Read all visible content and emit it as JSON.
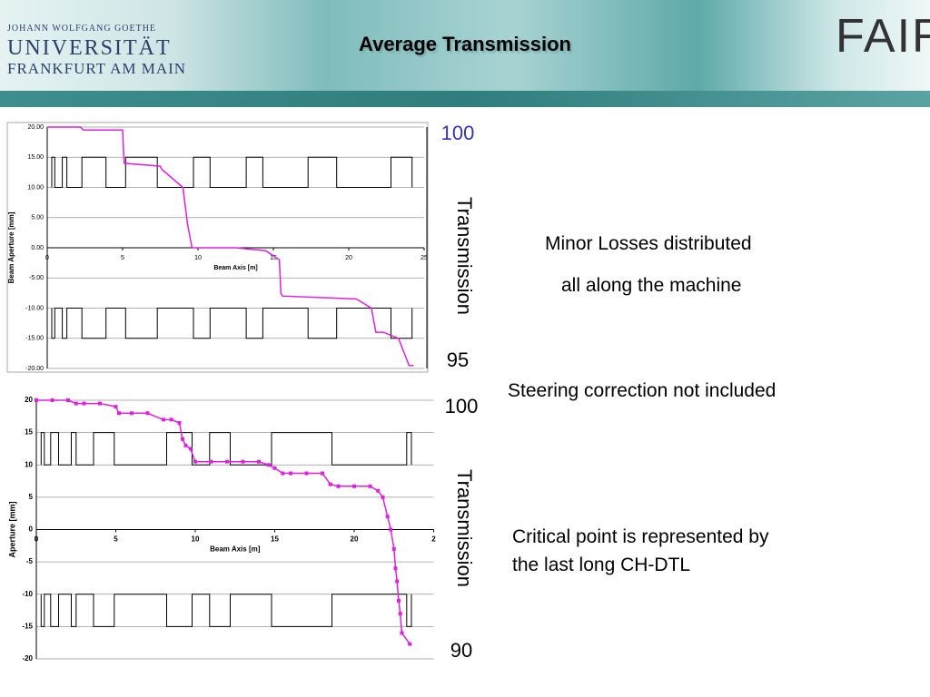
{
  "header": {
    "title": "Average Transmission",
    "university": [
      "JOHANN WOLFGANG GOETHE",
      "UNIVERSITÄT",
      "FRANKFURT AM MAIN"
    ],
    "logo": "FAIR"
  },
  "notes": [
    "Minor Losses distributed",
    "all along the machine",
    "Steering correction not included",
    "Critical point is represented by",
    "the last long CH-DTL"
  ],
  "chart_data": [
    {
      "type": "line",
      "xlabel": "Beam Axis [m]",
      "ylabel": "Beam Aperture [mm]",
      "y2label": "Transmission",
      "xlim": [
        0,
        25
      ],
      "xticks": [
        0,
        5,
        10,
        15,
        20,
        25
      ],
      "ylim": [
        -20,
        20
      ],
      "yticks": [
        {
          "value": 20,
          "label": "20.00"
        },
        {
          "value": 15,
          "label": "15.00"
        },
        {
          "value": 10,
          "label": "10.00"
        },
        {
          "value": 5,
          "label": "5.00"
        },
        {
          "value": 0,
          "label": "0.00"
        },
        {
          "value": -5,
          "label": "-5.00"
        },
        {
          "value": -10,
          "label": "-10.00"
        },
        {
          "value": -15,
          "label": "-15.00"
        },
        {
          "value": -20,
          "label": "-20.00"
        }
      ],
      "y2lim": [
        95,
        100
      ],
      "y2ticks": [
        95,
        100
      ],
      "grid": true,
      "series": [
        {
          "color": "#000000",
          "x": [
            0.3,
            0.3,
            0.5,
            0.5,
            1.0,
            1.0,
            1.3,
            1.3,
            2.3,
            2.3,
            3.9,
            3.9,
            5.2,
            5.2,
            7.3,
            7.3,
            9.7,
            9.7,
            10.8,
            10.8,
            13.2,
            13.2,
            14.3,
            14.3,
            17.3,
            17.3,
            19.2,
            19.2,
            22.8,
            22.8,
            24.2,
            24.2
          ],
          "values": [
            10,
            15,
            15,
            10,
            10,
            15,
            15,
            10,
            10,
            15,
            15,
            10,
            10,
            15,
            15,
            10,
            10,
            15,
            15,
            10,
            10,
            15,
            15,
            10,
            10,
            15,
            15,
            10,
            10,
            15,
            15,
            10
          ]
        },
        {
          "color": "#000000",
          "x": [
            0.3,
            0.3,
            0.5,
            0.5,
            1.0,
            1.0,
            1.3,
            1.3,
            2.3,
            2.3,
            3.9,
            3.9,
            5.2,
            5.2,
            7.3,
            7.3,
            9.7,
            9.7,
            10.8,
            10.8,
            13.2,
            13.2,
            14.3,
            14.3,
            17.3,
            17.3,
            19.2,
            19.2,
            22.8,
            22.8,
            24.2,
            24.2
          ],
          "values": [
            -10,
            -15,
            -15,
            -10,
            -10,
            -15,
            -15,
            -10,
            -10,
            -15,
            -15,
            -10,
            -10,
            -15,
            -15,
            -10,
            -10,
            -15,
            -15,
            -10,
            -10,
            -15,
            -15,
            -10,
            -10,
            -15,
            -15,
            -10,
            -10,
            -15,
            -15,
            -10
          ]
        },
        {
          "color": "#e020e0",
          "axis": "y2",
          "x": [
            0,
            2.2,
            2.4,
            5.0,
            5.1,
            7.5,
            7.6,
            9.0,
            9.3,
            9.6,
            9.8,
            12.5,
            14.5,
            15.4,
            15.5,
            15.6,
            20.5,
            21.5,
            21.8,
            22.3,
            23.3,
            24.0,
            24.3
          ],
          "values": [
            100,
            100,
            99.94,
            99.94,
            99.25,
            99.19,
            99.125,
            98.75,
            98.0,
            97.5,
            97.5,
            97.5,
            97.44,
            97.25,
            96.56,
            96.5,
            96.44,
            96.25,
            95.75,
            95.75,
            95.625,
            95.06,
            95.06
          ]
        }
      ]
    },
    {
      "type": "line",
      "xlabel": "Beam Axis [m]",
      "ylabel": "Aperture [mm]",
      "y2label": "Transmission",
      "xlim": [
        0,
        25
      ],
      "xticks": [
        0,
        5,
        10,
        15,
        20,
        {
          "value": 25,
          "label": "2"
        }
      ],
      "ylim": [
        -20,
        20
      ],
      "yticks": [
        20,
        15,
        10,
        5,
        0,
        -5,
        -10,
        -15,
        -20
      ],
      "y2lim": [
        90,
        100
      ],
      "y2ticks": [
        90,
        100
      ],
      "grid": true,
      "series": [
        {
          "color": "#000000",
          "x": [
            0.3,
            0.3,
            0.5,
            0.5,
            0.9,
            0.9,
            1.4,
            1.4,
            2.2,
            2.2,
            2.5,
            2.5,
            3.6,
            3.6,
            4.9,
            4.9,
            8.2,
            8.2,
            9.8,
            9.8,
            10.9,
            10.9,
            12.2,
            12.2,
            14.8,
            14.8,
            18.6,
            18.6,
            23.3,
            23.3,
            23.6,
            23.6
          ],
          "values": [
            10,
            15,
            15,
            10,
            10,
            15,
            15,
            10,
            10,
            15,
            15,
            10,
            10,
            15,
            15,
            10,
            10,
            15,
            15,
            10,
            10,
            15,
            15,
            10,
            10,
            15,
            15,
            10,
            10,
            15,
            15,
            10
          ]
        },
        {
          "color": "#000000",
          "x": [
            0.3,
            0.3,
            0.5,
            0.5,
            0.9,
            0.9,
            1.4,
            1.4,
            2.2,
            2.2,
            2.5,
            2.5,
            3.6,
            3.6,
            4.9,
            4.9,
            8.2,
            8.2,
            9.8,
            9.8,
            10.9,
            10.9,
            12.2,
            12.2,
            14.8,
            14.8,
            18.6,
            18.6,
            23.3,
            23.3,
            23.6,
            23.6
          ],
          "values": [
            -10,
            -15,
            -15,
            -10,
            -10,
            -15,
            -15,
            -10,
            -10,
            -15,
            -15,
            -10,
            -10,
            -15,
            -15,
            -10,
            -10,
            -15,
            -15,
            -10,
            -10,
            -15,
            -15,
            -10,
            -10,
            -15,
            -15,
            -10,
            -10,
            -15,
            -15,
            -10
          ]
        },
        {
          "color": "#e020e0",
          "axis": "y2",
          "marker": "square",
          "x": [
            0,
            1,
            2,
            2.5,
            3,
            4,
            5,
            5.2,
            6,
            7,
            8,
            8.5,
            9,
            9.2,
            9.4,
            9.7,
            10,
            11,
            12,
            13,
            14,
            14.6,
            15,
            15.5,
            16,
            17,
            18,
            18.5,
            19,
            20,
            21,
            21.5,
            21.8,
            22.1,
            22.3,
            22.5,
            22.6,
            22.7,
            22.8,
            22.9,
            23,
            23.5
          ],
          "values": [
            100,
            100,
            100,
            99.875,
            99.875,
            99.875,
            99.75,
            99.5,
            99.5,
            99.5,
            99.25,
            99.25,
            99.125,
            98.5,
            98.25,
            98.125,
            97.625,
            97.625,
            97.625,
            97.625,
            97.625,
            97.5,
            97.375,
            97.175,
            97.175,
            97.175,
            97.175,
            96.75,
            96.675,
            96.675,
            96.675,
            96.5,
            96.25,
            95.5,
            95,
            94.25,
            93.5,
            93,
            92.25,
            91.75,
            91,
            90.575
          ]
        }
      ]
    }
  ]
}
